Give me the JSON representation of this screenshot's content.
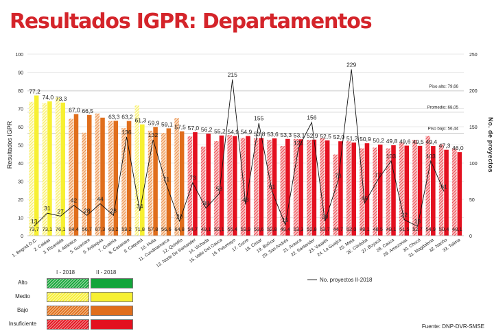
{
  "header": {
    "title": "Resultados IGPR: Departamentos"
  },
  "chart_data": {
    "type": "bar",
    "ylabel": "Resultados IGPR",
    "y2label": "No. de proyectos",
    "ylim": [
      0,
      100
    ],
    "y2lim": [
      0,
      250
    ],
    "yticks": [
      "0",
      "10",
      "20",
      "30",
      "40",
      "50",
      "60",
      "70",
      "80",
      "90",
      "100"
    ],
    "y2ticks": [
      "0",
      "50",
      "100",
      "150",
      "200",
      "250"
    ],
    "categories": [
      "1. Bogotá D.C.",
      "2. Caldas",
      "3. Risaralda",
      "4. Atlántico",
      "5. Guaviare",
      "6. Antioquia",
      "7. Guainía",
      "8. Casanare",
      "9. Caquetá",
      "10. Huila",
      "11. Cundinamarca",
      "12. Quindío",
      "13. Norte De Santander",
      "14. Vichada",
      "15. Valle Del Cauca",
      "16. Putumayo",
      "17. Sucre",
      "18. Cesar",
      "19. Bolívar",
      "20. San Andrés",
      "21. Arauca",
      "22. Santander",
      "23. Vaupés",
      "24. La Guajira",
      "25. Meta",
      "26. Córdoba",
      "27. Boyacá",
      "28. Cauca",
      "29. Amazonas",
      "30. Chocó",
      "31. Magdalena",
      "32. Nariño",
      "33. Tolima"
    ],
    "series": [
      {
        "name": "I - 2018",
        "values": [
          73.7,
          73.1,
          76.1,
          64.4,
          56.7,
          67.3,
          63.2,
          59.2,
          71.8,
          57.8,
          56.6,
          64.8,
          54.7,
          49.1,
          52.1,
          55.4,
          53.9,
          53.6,
          52.8,
          49.4,
          53.3,
          52.8,
          53.7,
          44.7,
          52.0,
          48.1,
          48.5,
          48.1,
          51.5,
          52.7,
          54.9,
          50.4,
          48.1
        ],
        "labels": [
          "73,7",
          "73,1",
          "76,1",
          "64,4",
          "56,7",
          "67,3",
          "63,2",
          "59,2",
          "71,8",
          "57,8",
          "56,6",
          "64,8",
          "54,7",
          "49,1",
          "52,1",
          "55,4",
          "53,9",
          "53,6",
          "52,8",
          "49,4",
          "53,3",
          "52,8",
          "53,7",
          "44,7",
          "52,0",
          "48,1",
          "48,5",
          "48,1",
          "51,5",
          "52,7",
          "54,9",
          "50,4",
          "48,1"
        ]
      },
      {
        "name": "II - 2018",
        "values": [
          77.2,
          74.0,
          73.3,
          67.0,
          66.5,
          65.0,
          63.3,
          63.2,
          61.3,
          59.9,
          59.1,
          57.5,
          57.0,
          56.2,
          55.2,
          54.9,
          54.9,
          53.8,
          53.6,
          53.3,
          53.1,
          52.9,
          52.5,
          52.0,
          51.3,
          50.9,
          50.2,
          49.8,
          49.6,
          49.5,
          49.4,
          47.3,
          46.0
        ],
        "labels": [
          "77,2",
          "74,0",
          "73,3",
          "67,0",
          "66,5",
          "",
          "63,3",
          "63,2",
          "61,3",
          "59,9",
          "59,1",
          "57,5",
          "57,0",
          "56,2",
          "55,2",
          "54,9",
          "54,9",
          "53,8",
          "53,6",
          "53,3",
          "53,1",
          "52,9",
          "52,5",
          "52,0",
          "51,3",
          "50,9",
          "50,2",
          "49,8",
          "49,6",
          "49,5",
          "49,4",
          "47,3",
          "46,0"
        ],
        "levels": [
          "medio",
          "medio",
          "medio",
          "bajo",
          "bajo",
          "bajo",
          "bajo",
          "bajo",
          "medio",
          "bajo",
          "bajo",
          "bajo",
          "insuficiente",
          "insuficiente",
          "insuficiente",
          "insuficiente",
          "insuficiente",
          "insuficiente",
          "insuficiente",
          "insuficiente",
          "insuficiente",
          "insuficiente",
          "insuficiente",
          "insuficiente",
          "insuficiente",
          "insuficiente",
          "insuficiente",
          "insuficiente",
          "insuficiente",
          "insuficiente",
          "insuficiente",
          "insuficiente",
          "insuficiente"
        ]
      },
      {
        "name": "No. proyectos II-2018",
        "type": "line",
        "axis": "y2",
        "values": [
          13,
          31,
          27,
          42,
          28,
          44,
          28,
          136,
          34,
          132,
          71,
          20,
          73,
          38,
          58,
          215,
          43,
          155,
          61,
          15,
          121,
          156,
          20,
          76,
          229,
          45,
          77,
          103,
          22,
          13,
          103,
          61,
          null
        ],
        "labels": [
          "13",
          "31",
          "27",
          "42",
          "28",
          "44",
          "28",
          "136",
          "34",
          "132",
          "71",
          "20",
          "73",
          "38",
          "58",
          "215",
          "43",
          "155",
          "61",
          "15",
          "121",
          "156",
          "20",
          "76",
          "229",
          "45",
          "77",
          "103",
          "22",
          "13",
          "103",
          "61",
          ""
        ]
      }
    ],
    "thresholds": [
      {
        "label": "Piso alto: 79,66",
        "value": 79.66
      },
      {
        "label": "Promedio: 68,05",
        "value": 68.05
      },
      {
        "label": "Piso bajo: 56,44",
        "value": 56.44
      }
    ],
    "legend": {
      "col1": "I - 2018",
      "col2": "II - 2018",
      "rows": [
        "Alto",
        "Medio",
        "Bajo",
        "Insuficiente"
      ],
      "line_label": "No. proyectos II-2018"
    },
    "colors": {
      "alto_solid": "#12a53a",
      "alto_hatch": "#8fd39a",
      "medio_solid": "#f7f032",
      "medio_hatch": "#fbf59a",
      "bajo_solid": "#e06e1c",
      "bajo_hatch": "#f2b47e",
      "insuficiente_solid": "#e3101f",
      "insuficiente_hatch": "#f08080",
      "title": "#d4242a"
    },
    "grid": true,
    "legend_position": "bottom-left"
  },
  "footer": {
    "source": "Fuente: DNP-DVR-SMSE"
  }
}
